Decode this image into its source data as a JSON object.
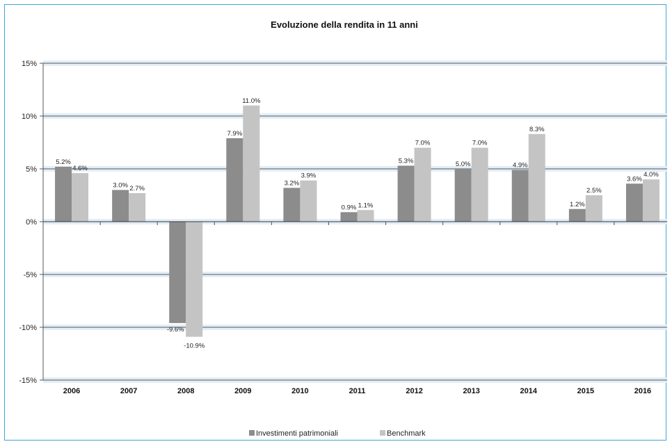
{
  "chart_data": {
    "type": "bar",
    "title": "Evoluzione  della rendita in 11 anni",
    "xlabel": "",
    "ylabel": "",
    "categories": [
      "2006",
      "2007",
      "2008",
      "2009",
      "2010",
      "2011",
      "2012",
      "2013",
      "2014",
      "2015",
      "2016"
    ],
    "series": [
      {
        "name": "Investimenti patrimoniali",
        "color": "#8c8c8c",
        "values": [
          5.2,
          3.0,
          -9.6,
          7.9,
          3.2,
          0.9,
          5.3,
          5.0,
          4.9,
          1.2,
          3.6
        ],
        "labels": [
          "5.2%",
          "3.0%",
          "-9.6%",
          "7.9%",
          "3.2%",
          "0.9%",
          "5.3%",
          "5.0%",
          "4.9%",
          "1.2%",
          "3.6%"
        ]
      },
      {
        "name": "Benchmark",
        "color": "#c4c4c4",
        "values": [
          4.6,
          2.7,
          -10.9,
          11.0,
          3.9,
          1.1,
          7.0,
          7.0,
          8.3,
          2.5,
          4.0
        ],
        "labels": [
          "4.6%",
          "2.7%",
          "-10.9%",
          "11.0%",
          "3.9%",
          "1.1%",
          "7.0%",
          "7.0%",
          "8.3%",
          "2.5%",
          "4.0%"
        ]
      }
    ],
    "ylim": [
      -15,
      15
    ],
    "yticks": [
      15,
      10,
      5,
      0,
      -5,
      -10,
      -15
    ],
    "ytick_labels": [
      "15%",
      "10%",
      "5%",
      "0%",
      "-5%",
      "-10%",
      "-15%"
    ],
    "grid": true,
    "legend_position": "bottom-center"
  }
}
